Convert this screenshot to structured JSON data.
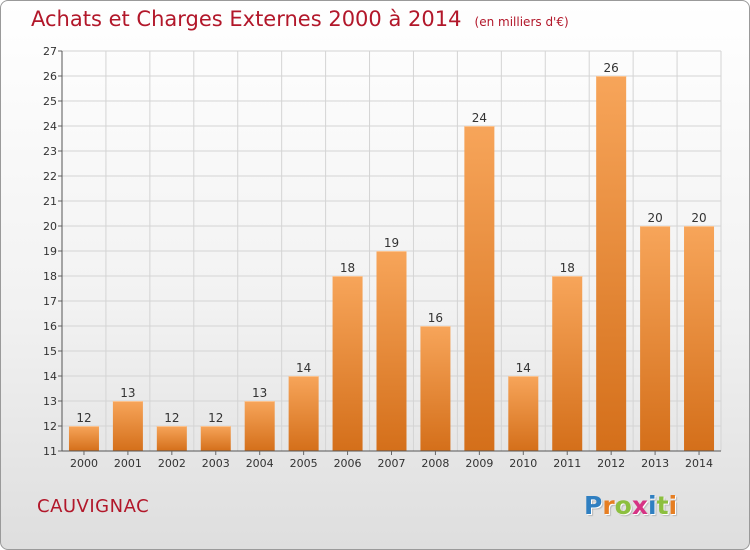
{
  "header": {
    "title": "Achats et Charges Externes 2000 à 2014",
    "unit": "(en milliers d'€)"
  },
  "footer": {
    "commune": "CAUVIGNAC",
    "brand_letters": [
      "P",
      "r",
      "o",
      "x",
      "i",
      "t",
      "i"
    ],
    "brand_colors": [
      "#2f7fc1",
      "#e67e22",
      "#8cbf3f",
      "#d63384",
      "#2f7fc1",
      "#8cbf3f",
      "#e67e22"
    ]
  },
  "colors": {
    "bar_light": "#f7a55a",
    "bar_dark": "#d46f1a",
    "title": "#b2172a",
    "grid": "#d4d4d4"
  },
  "chart_data": {
    "type": "bar",
    "title": "Achats et Charges Externes 2000 à 2014",
    "subtitle": "(en milliers d'€)",
    "xlabel": "",
    "ylabel": "",
    "categories": [
      "2000",
      "2001",
      "2002",
      "2003",
      "2004",
      "2005",
      "2006",
      "2007",
      "2008",
      "2009",
      "2010",
      "2011",
      "2012",
      "2013",
      "2014"
    ],
    "values": [
      12,
      13,
      12,
      12,
      13,
      14,
      18,
      19,
      16,
      24,
      14,
      18,
      26,
      20,
      20
    ],
    "ylim": [
      11,
      27
    ],
    "yticks": [
      11,
      12,
      13,
      14,
      15,
      16,
      17,
      18,
      19,
      20,
      21,
      22,
      23,
      24,
      25,
      26,
      27
    ],
    "grid": true,
    "data_labels": true
  }
}
